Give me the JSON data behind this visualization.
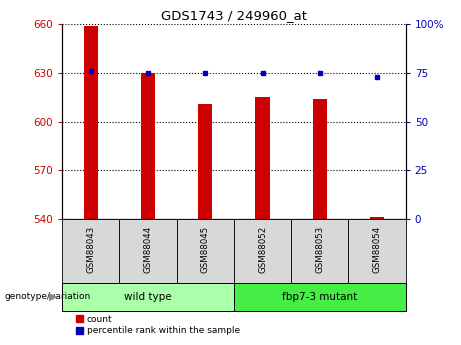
{
  "title": "GDS1743 / 249960_at",
  "samples": [
    "GSM88043",
    "GSM88044",
    "GSM88045",
    "GSM88052",
    "GSM88053",
    "GSM88054"
  ],
  "bar_values": [
    659,
    630,
    611,
    615,
    614,
    541
  ],
  "percentile_values": [
    76,
    75,
    75,
    75,
    75,
    73
  ],
  "bar_bottom": 540,
  "ylim_left": [
    540,
    660
  ],
  "ylim_right": [
    0,
    100
  ],
  "yticks_left": [
    540,
    570,
    600,
    630,
    660
  ],
  "yticks_right": [
    0,
    25,
    50,
    75,
    100
  ],
  "ytick_labels_right": [
    "0",
    "25",
    "50",
    "75",
    "100%"
  ],
  "bar_color": "#cc0000",
  "dot_color": "#0000bb",
  "groups": [
    {
      "label": "wild type",
      "indices": [
        0,
        1,
        2
      ],
      "color": "#aaffaa"
    },
    {
      "label": "fbp7-3 mutant",
      "indices": [
        3,
        4,
        5
      ],
      "color": "#44ee44"
    }
  ],
  "group_label": "genotype/variation",
  "legend_count_label": "count",
  "legend_percentile_label": "percentile rank within the sample",
  "background_color": "#ffffff",
  "tick_label_color_left": "#cc0000",
  "tick_label_color_right": "#0000bb",
  "bar_width": 0.25
}
